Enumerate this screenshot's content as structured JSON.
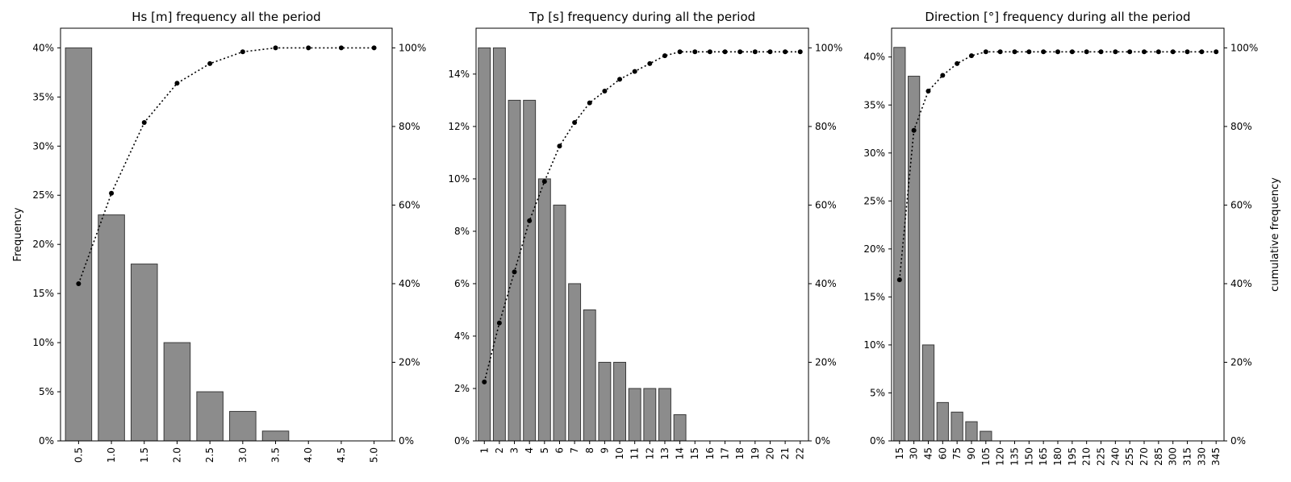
{
  "chart_data": [
    {
      "type": "bar",
      "title": "Hs [m] frequency all the period",
      "ylabel": "Frequency",
      "y2label": "",
      "categories": [
        "0.5",
        "1.0",
        "1.5",
        "2.0",
        "2.5",
        "3.0",
        "3.5",
        "4.0",
        "4.5",
        "5.0"
      ],
      "values": [
        40,
        23,
        18,
        10,
        5,
        3,
        1,
        0,
        0,
        0
      ],
      "cumulative": [
        40,
        63,
        81,
        91,
        96,
        99,
        100,
        100,
        100,
        100
      ],
      "ylim": [
        0,
        42
      ],
      "yticks": [
        0,
        5,
        10,
        15,
        20,
        25,
        30,
        35,
        40
      ],
      "y2lim": [
        0,
        105
      ],
      "y2ticks": [
        0,
        20,
        40,
        60,
        80,
        100
      ],
      "xtick_rotation": 90
    },
    {
      "type": "bar",
      "title": "Tp [s] frequency during all the period",
      "ylabel": "",
      "y2label": "",
      "categories": [
        "1",
        "2",
        "3",
        "4",
        "5",
        "6",
        "7",
        "8",
        "9",
        "10",
        "11",
        "12",
        "13",
        "14",
        "15",
        "16",
        "17",
        "18",
        "19",
        "20",
        "21",
        "22"
      ],
      "values": [
        15,
        15,
        13,
        13,
        10,
        9,
        6,
        5,
        3,
        3,
        2,
        2,
        2,
        1,
        0,
        0,
        0,
        0,
        0,
        0,
        0,
        0
      ],
      "cumulative": [
        15,
        30,
        43,
        56,
        66,
        75,
        81,
        86,
        89,
        92,
        94,
        96,
        98,
        99,
        99,
        99,
        99,
        99,
        99,
        99,
        99,
        99
      ],
      "ylim": [
        0,
        15.75
      ],
      "yticks": [
        0,
        2,
        4,
        6,
        8,
        10,
        12,
        14
      ],
      "y2lim": [
        0,
        105
      ],
      "y2ticks": [
        0,
        20,
        40,
        60,
        80,
        100
      ],
      "xtick_rotation": 90
    },
    {
      "type": "bar",
      "title": "Direction [°] frequency during all the period",
      "ylabel": "",
      "y2label": "cumulative frequency",
      "categories": [
        "15",
        "30",
        "45",
        "60",
        "75",
        "90",
        "105",
        "120",
        "135",
        "150",
        "165",
        "180",
        "195",
        "210",
        "225",
        "240",
        "255",
        "270",
        "285",
        "300",
        "315",
        "330",
        "345"
      ],
      "values": [
        41,
        38,
        10,
        4,
        3,
        2,
        1,
        0,
        0,
        0,
        0,
        0,
        0,
        0,
        0,
        0,
        0,
        0,
        0,
        0,
        0,
        0,
        0
      ],
      "cumulative": [
        41,
        79,
        89,
        93,
        96,
        98,
        99,
        99,
        99,
        99,
        99,
        99,
        99,
        99,
        99,
        99,
        99,
        99,
        99,
        99,
        99,
        99,
        99
      ],
      "ylim": [
        0,
        43
      ],
      "yticks": [
        0,
        5,
        10,
        15,
        20,
        25,
        30,
        35,
        40
      ],
      "y2lim": [
        0,
        105
      ],
      "y2ticks": [
        0,
        20,
        40,
        60,
        80,
        100
      ],
      "xtick_rotation": 90
    }
  ]
}
